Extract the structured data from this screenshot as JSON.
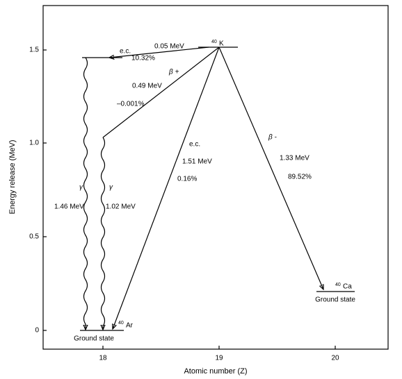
{
  "axes": {
    "y_label": "Energy release (MeV)",
    "x_label": "Atomic number (Z)",
    "y_ticks": [
      "0",
      "0.5",
      "1.0",
      "1.5"
    ],
    "x_ticks": [
      "18",
      "19",
      "20"
    ]
  },
  "nuclides": {
    "potassium": {
      "mass": "40",
      "symbol": "K"
    },
    "argon": {
      "mass": "40",
      "symbol": "Ar",
      "state": "Ground state"
    },
    "calcium": {
      "mass": "40",
      "symbol": "Ca",
      "state": "Ground state"
    }
  },
  "transitions": {
    "ec_excited": {
      "mode": "e.c.",
      "energy": "0.05 MeV",
      "branch": "10.32%"
    },
    "beta_plus": {
      "mode": "β +",
      "energy": "0.49 MeV",
      "branch": "–0.001%"
    },
    "ec_ground": {
      "mode": "e.c.",
      "energy": "1.51 MeV",
      "branch": "0.16%"
    },
    "beta_minus": {
      "mode": "β -",
      "energy": "1.33 MeV",
      "branch": "89.52%"
    },
    "gamma_1": {
      "mode": "γ",
      "energy": "1.46 MeV"
    },
    "gamma_2": {
      "mode": "γ",
      "energy": "1.02 MeV"
    }
  }
}
